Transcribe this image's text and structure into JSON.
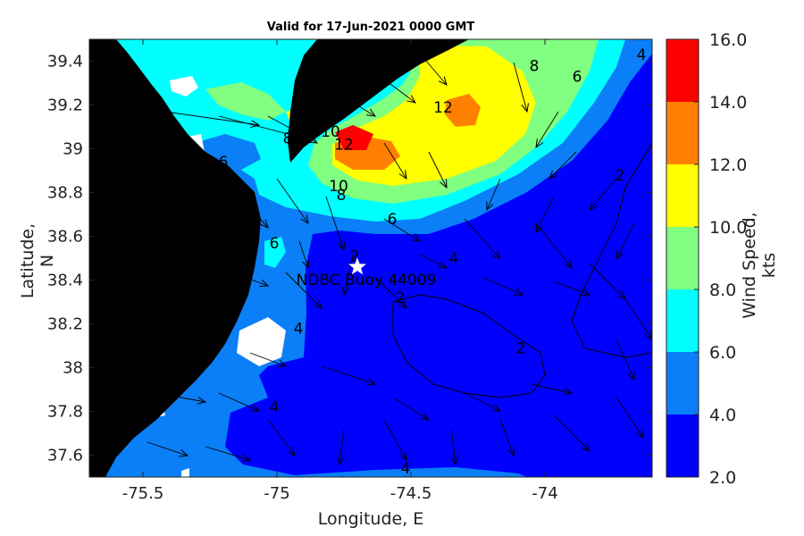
{
  "map": {
    "title": "Valid for 17-Jun-2021 0000 GMT",
    "xlabel": "Longitude, E",
    "ylabel": "Latitude, N",
    "lon_range": [
      -75.7,
      -73.6
    ],
    "lat_range": [
      37.5,
      39.5
    ],
    "lon_ticks": [
      "-75.5",
      "-75",
      "-74.5",
      "-74"
    ],
    "lat_ticks": [
      "39.4",
      "39.2",
      "39",
      "38.8",
      "38.6",
      "38.4",
      "38.2",
      "38",
      "37.8",
      "37.6"
    ],
    "station": {
      "label": "NDBC Buoy 44009",
      "lon": -74.7,
      "lat": 38.46
    },
    "contour_labels": [
      {
        "text": "12",
        "lon": -74.38,
        "lat": 39.19
      },
      {
        "text": "12",
        "lon": -74.75,
        "lat": 39.02
      },
      {
        "text": "10",
        "lon": -74.8,
        "lat": 39.08
      },
      {
        "text": "10",
        "lon": -74.77,
        "lat": 38.83
      },
      {
        "text": "8",
        "lon": -74.96,
        "lat": 39.05
      },
      {
        "text": "8",
        "lon": -74.76,
        "lat": 38.79
      },
      {
        "text": "8",
        "lon": -74.04,
        "lat": 39.38
      },
      {
        "text": "6",
        "lon": -75.2,
        "lat": 38.94
      },
      {
        "text": "6",
        "lon": -74.57,
        "lat": 38.68
      },
      {
        "text": "6",
        "lon": -75.01,
        "lat": 38.57
      },
      {
        "text": "6",
        "lon": -73.88,
        "lat": 39.33
      },
      {
        "text": "4",
        "lon": -74.34,
        "lat": 38.5
      },
      {
        "text": "4",
        "lon": -73.64,
        "lat": 39.43
      },
      {
        "text": "4",
        "lon": -74.92,
        "lat": 38.18
      },
      {
        "text": "4",
        "lon": -75.01,
        "lat": 37.82
      },
      {
        "text": "4",
        "lon": -74.52,
        "lat": 37.54
      },
      {
        "text": "2",
        "lon": -74.71,
        "lat": 38.51
      },
      {
        "text": "2",
        "lon": -74.54,
        "lat": 38.32
      },
      {
        "text": "2",
        "lon": -73.72,
        "lat": 38.88
      },
      {
        "text": "2",
        "lon": -74.09,
        "lat": 38.09
      }
    ]
  },
  "colorbar": {
    "label": "Wind Speed, kts",
    "ticks": [
      "2.0",
      "4.0",
      "6.0",
      "8.0",
      "10.0",
      "12.0",
      "14.0",
      "16.0"
    ],
    "range": [
      2,
      16
    ],
    "bands": [
      {
        "from": 2,
        "to": 4,
        "color": "#0000ff"
      },
      {
        "from": 4,
        "to": 6,
        "color": "#0a7ff7"
      },
      {
        "from": 6,
        "to": 8,
        "color": "#00ffff"
      },
      {
        "from": 8,
        "to": 10,
        "color": "#80ff80"
      },
      {
        "from": 10,
        "to": 12,
        "color": "#ffff00"
      },
      {
        "from": 12,
        "to": 14,
        "color": "#ff8000"
      },
      {
        "from": 14,
        "to": 16,
        "color": "#ff0000"
      }
    ]
  },
  "colors": {
    "land": "#000000",
    "star": "#ffffff"
  }
}
